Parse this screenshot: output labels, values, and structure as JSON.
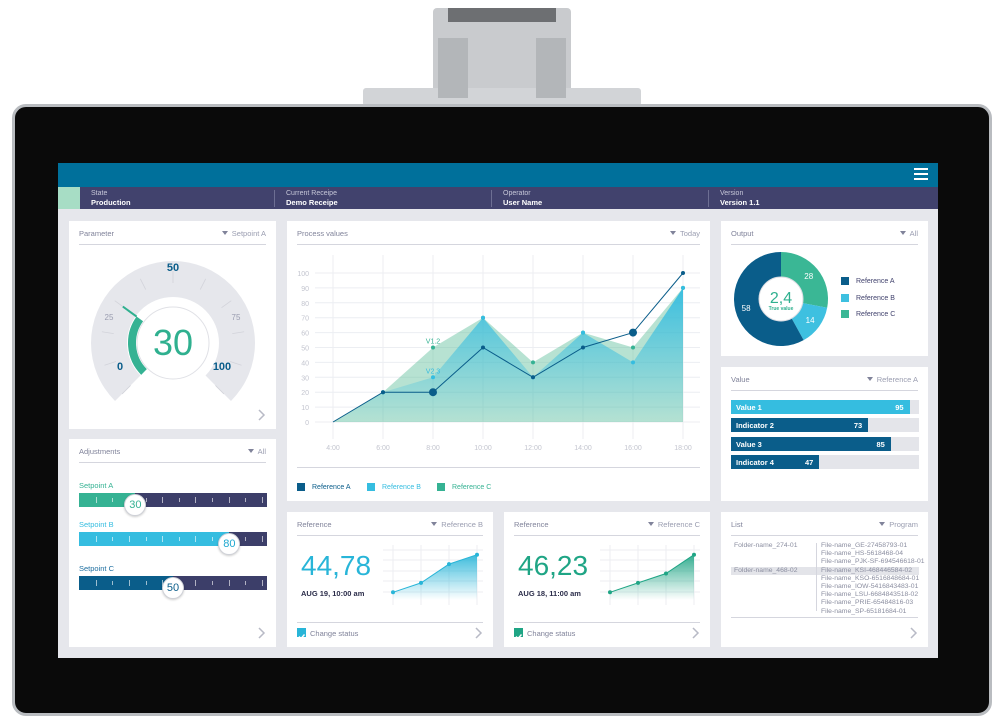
{
  "header": {
    "menu_icon": "hamburger-icon",
    "state": {
      "label": "State",
      "value": "Production"
    },
    "receipe": {
      "label": "Current Receipe",
      "value": "Demo Receipe"
    },
    "operator": {
      "label": "Operator",
      "value": "User Name"
    },
    "version": {
      "label": "Version",
      "value": "Version 1.1"
    }
  },
  "colors": {
    "topbar": "#00709b",
    "infobar": "#41426d",
    "dark_blue": "#0a5d8a",
    "light_blue": "#35bde0",
    "green": "#2fb08f",
    "navy": "#3c3e69"
  },
  "parameter": {
    "title": "Parameter",
    "filter": "Setpoint A",
    "value": 30,
    "value_label": "30",
    "min_label": "0",
    "max_label": "100",
    "mid_label": "50",
    "q1_label": "25",
    "q3_label": "75",
    "min": 0,
    "max": 100
  },
  "adjustments": {
    "title": "Adjustments",
    "filter": "All",
    "items": [
      {
        "label": "Setpoint A",
        "value": 30,
        "value_label": "30",
        "color": "#35b293"
      },
      {
        "label": "Setpoint B",
        "value": 80,
        "value_label": "80",
        "color": "#35bde0"
      },
      {
        "label": "Setpoint C",
        "value": 50,
        "value_label": "50",
        "color": "#0a5d8a"
      }
    ]
  },
  "process": {
    "title": "Process values",
    "filter": "Today",
    "legend": [
      "Reference A",
      "Reference B",
      "Reference C"
    ]
  },
  "chart_data": {
    "type": "line",
    "title": "Process values",
    "x": [
      "4:00",
      "6:00",
      "8:00",
      "10:00",
      "12:00",
      "14:00",
      "16:00",
      "18:00"
    ],
    "yticks": [
      0,
      10,
      20,
      30,
      40,
      50,
      60,
      70,
      80,
      90,
      100
    ],
    "ylim": [
      0,
      100
    ],
    "grid": true,
    "legend": "bottom-left",
    "series": [
      {
        "name": "Reference A",
        "color": "#0a5d8a",
        "values": [
          0,
          20,
          20,
          50,
          30,
          50,
          60,
          100
        ],
        "style": "line",
        "highlight": [
          2,
          6
        ]
      },
      {
        "name": "Reference B",
        "color": "#35bde0",
        "values": [
          0,
          20,
          30,
          70,
          30,
          60,
          40,
          90
        ],
        "style": "area"
      },
      {
        "name": "Reference C",
        "color": "#35b293",
        "values": [
          0,
          20,
          50,
          70,
          40,
          60,
          50,
          90
        ],
        "style": "area"
      }
    ],
    "annotations": [
      {
        "text": "V1.2",
        "series": "Reference C",
        "x": "8:00"
      },
      {
        "text": "V2.3",
        "series": "Reference B",
        "x": "8:00"
      }
    ]
  },
  "ref_b": {
    "title": "Reference",
    "filter": "Reference B",
    "value": "44,78",
    "date": "AUG 19, 10:00 am",
    "status": "Change status",
    "checked": true,
    "trend": [
      10,
      30,
      70,
      90
    ],
    "color": "#28b5d8"
  },
  "ref_c": {
    "title": "Reference",
    "filter": "Reference C",
    "value": "46,23",
    "date": "AUG 18, 11:00 am",
    "status": "Change status",
    "checked": true,
    "trend": [
      10,
      30,
      50,
      90
    ],
    "color": "#1fa585"
  },
  "output": {
    "title": "Output",
    "filter": "All",
    "center_value": "2,4",
    "center_label": "True value",
    "slices": [
      {
        "name": "Reference C",
        "value": 28,
        "color": "#3ab795"
      },
      {
        "name": "Reference B",
        "value": 14,
        "color": "#3ec0e0"
      },
      {
        "name": "Reference A",
        "value": 58,
        "color": "#0a5d8a"
      }
    ],
    "legend": [
      "Reference A",
      "Reference B",
      "Reference C"
    ]
  },
  "value": {
    "title": "Value",
    "filter": "Reference A",
    "bars": [
      {
        "label": "Value 1",
        "value": 95,
        "color": "#35bde0"
      },
      {
        "label": "Indicator 2",
        "value": 73,
        "color": "#0a5d8a"
      },
      {
        "label": "Value 3",
        "value": 85,
        "color": "#0a5d8a"
      },
      {
        "label": "Indicator 4",
        "value": 47,
        "color": "#0a5d8a"
      }
    ]
  },
  "list": {
    "title": "List",
    "filter": "Program",
    "folders": [
      "Folder-name_274-01",
      "Folder-name_468-02"
    ],
    "selected_folder": 1,
    "files": [
      "File-name_GE-27458793-01",
      "File-name_HS-5618468-04",
      "File-name_PJK-SF-694546618-01",
      "File-name_KSI-468446584-02",
      "File-name_KSO-6516848684-01",
      "File-name_IOW-5416843483-01",
      "File-name_LSU-6684843518-02",
      "File-name_PRIE-65484816-03",
      "File-name_SP-65181684-01"
    ],
    "selected_file": 3
  }
}
